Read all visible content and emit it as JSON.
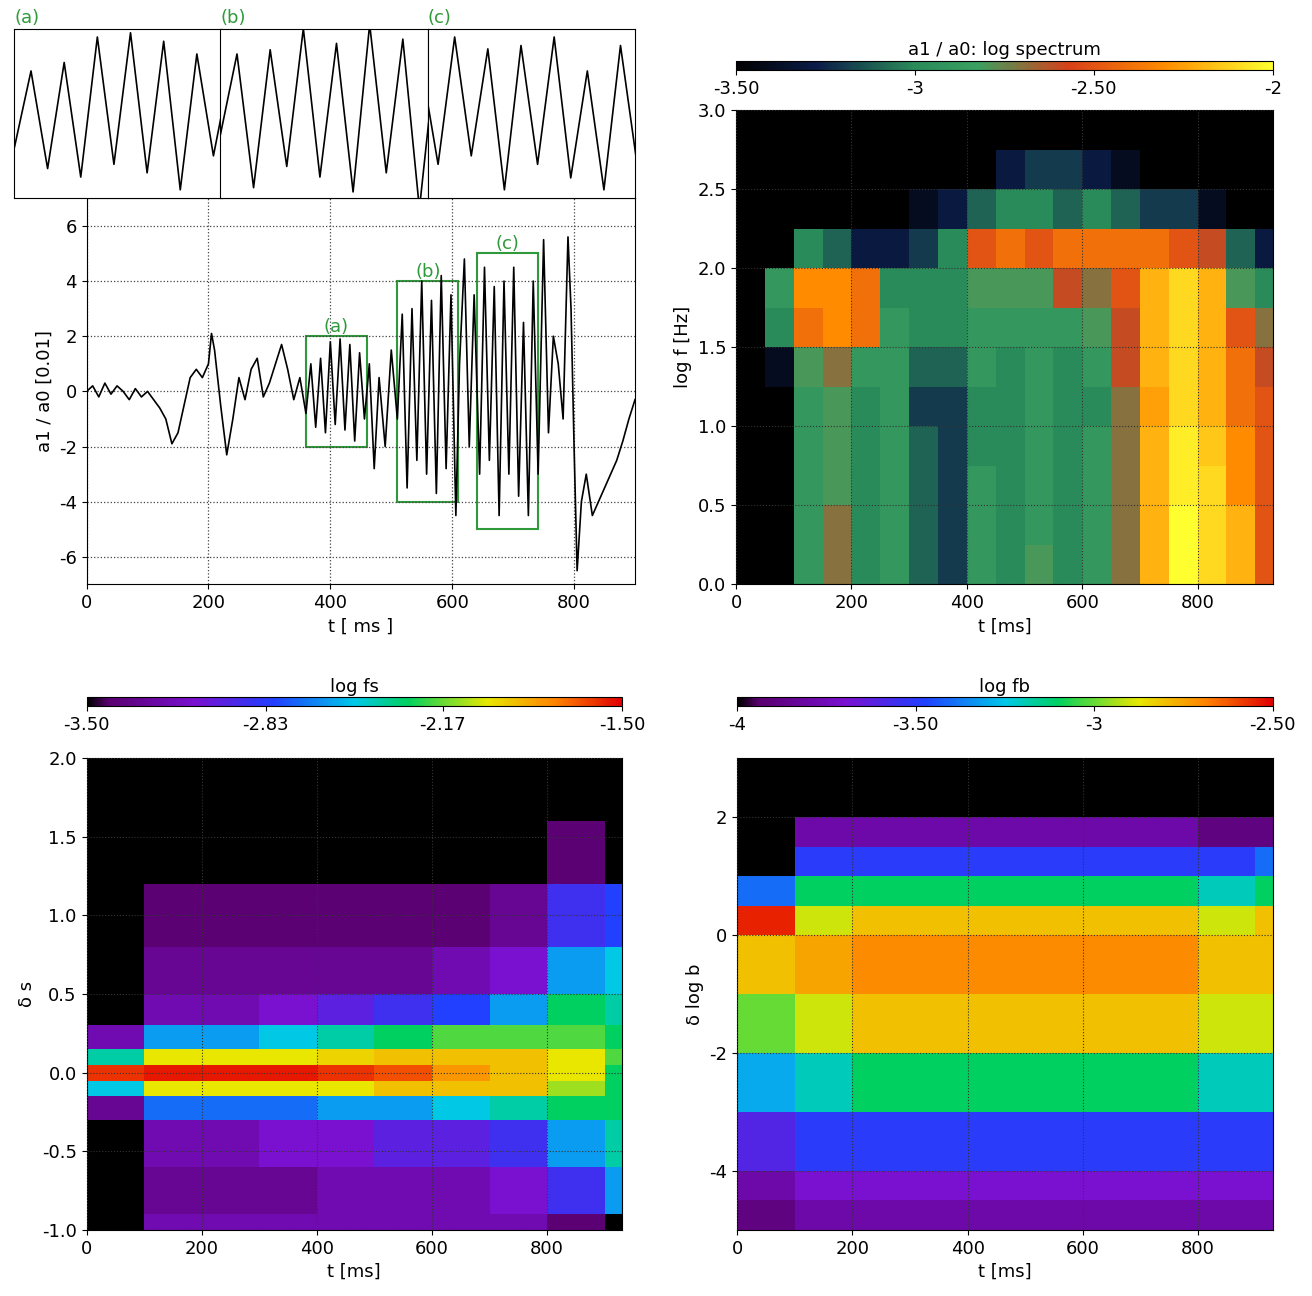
{
  "chart_data": [
    {
      "type": "line",
      "x_label": "t [ ms ]",
      "y_label": "a1 / a0 [0.01]",
      "x": [
        0,
        10,
        20,
        30,
        40,
        50,
        60,
        70,
        80,
        90,
        100,
        110,
        120,
        130,
        140,
        150,
        160,
        170,
        180,
        190,
        200,
        205,
        210,
        220,
        230,
        240,
        250,
        260,
        270,
        280,
        290,
        300,
        310,
        320,
        330,
        340,
        350,
        360,
        368,
        376,
        384,
        392,
        400,
        408,
        416,
        424,
        432,
        440,
        448,
        456,
        464,
        472,
        480,
        490,
        500,
        510,
        518,
        526,
        534,
        542,
        550,
        558,
        566,
        574,
        582,
        590,
        598,
        606,
        612,
        620,
        628,
        636,
        645,
        653,
        661,
        669,
        677,
        685,
        693,
        701,
        709,
        717,
        725,
        733,
        741,
        750,
        758,
        766,
        774,
        782,
        790,
        795,
        800,
        805,
        812,
        820,
        830,
        840,
        850,
        860,
        870,
        880,
        890,
        900
      ],
      "values": [
        0,
        0.2,
        -0.2,
        0.3,
        -0.1,
        0.2,
        0,
        -0.3,
        0.1,
        -0.2,
        0,
        -0.3,
        -0.6,
        -1.0,
        -1.9,
        -1.5,
        -0.5,
        0.5,
        0.8,
        0.5,
        1.0,
        2.1,
        1.5,
        -0.5,
        -2.3,
        -1.0,
        0.5,
        -0.3,
        0.8,
        1.2,
        -0.2,
        0.3,
        1.0,
        1.7,
        0.8,
        -0.3,
        0.5,
        -0.8,
        1.0,
        -1.3,
        1.2,
        -1.5,
        1.8,
        -1.2,
        1.9,
        -1.4,
        1.7,
        -1.8,
        1.4,
        -1.0,
        1.0,
        -2.8,
        0.5,
        -2.0,
        1.5,
        -1.0,
        2.8,
        -3.5,
        3.0,
        -2.5,
        4.0,
        -3.0,
        3.3,
        -3.7,
        4.2,
        -2.8,
        3.5,
        -4.5,
        1.0,
        4.8,
        -2.0,
        3.5,
        -3.0,
        4.5,
        -2.5,
        3.8,
        -4.5,
        4.0,
        -3.0,
        4.5,
        -3.8,
        2.5,
        -4.5,
        4.0,
        -3.0,
        5.5,
        -1.5,
        2.0,
        1.0,
        -1.0,
        5.6,
        3.0,
        -2.0,
        -6.5,
        -4.0,
        -3.0,
        -4.5,
        -4.0,
        -3.5,
        -3.0,
        -2.5,
        -1.8,
        -1.0,
        -0.3
      ],
      "color": "#000000",
      "xlim": [
        0,
        900
      ],
      "xticks": [
        0,
        200,
        400,
        600,
        800
      ],
      "ylim": [
        -7,
        7
      ],
      "yticks": [
        -6,
        -4,
        -2,
        0,
        2,
        4,
        6
      ],
      "grid": true,
      "boxes": [
        {
          "label": "(a)",
          "x": [
            360,
            460
          ],
          "y": [
            -2,
            2
          ]
        },
        {
          "label": "(b)",
          "x": [
            510,
            610
          ],
          "y": [
            -4,
            4
          ]
        },
        {
          "label": "(c)",
          "x": [
            640,
            740
          ],
          "y": [
            -5,
            5
          ]
        }
      ],
      "box_color": "#2e9a3a"
    },
    {
      "type": "heatmap",
      "clabel": "a1 / a0: log spectrum",
      "x_label": "t [ms]",
      "y_label": "log f [Hz]",
      "x_edges": [
        0,
        50,
        100,
        150,
        200,
        250,
        300,
        350,
        400,
        450,
        500,
        550,
        600,
        650,
        700,
        750,
        800,
        850,
        900,
        930
      ],
      "y_edges": [
        0,
        0.25,
        0.5,
        0.75,
        1.0,
        1.25,
        1.5,
        1.75,
        2.0,
        2.25,
        2.5,
        2.75,
        3.0
      ],
      "cells": [
        [
          -3.5,
          -3.5,
          -2.9,
          -2.7,
          -3.0,
          -2.9,
          -3.1,
          -3.2,
          -2.9,
          -3.0,
          -2.8,
          -3.0,
          -2.9,
          -2.7,
          -2.2,
          -2.0,
          -2.1,
          -2.2,
          -2.5
        ],
        [
          -3.5,
          -3.5,
          -2.9,
          -2.7,
          -3.0,
          -2.9,
          -3.1,
          -3.2,
          -2.9,
          -3.0,
          -2.9,
          -3.0,
          -2.9,
          -2.7,
          -2.2,
          -2.0,
          -2.1,
          -2.2,
          -2.5
        ],
        [
          -3.5,
          -3.5,
          -2.9,
          -2.8,
          -3.0,
          -2.9,
          -3.1,
          -3.2,
          -2.9,
          -3.0,
          -2.9,
          -3.0,
          -2.9,
          -2.7,
          -2.2,
          -2.05,
          -2.1,
          -2.3,
          -2.5
        ],
        [
          -3.5,
          -3.5,
          -2.9,
          -2.8,
          -3.0,
          -2.9,
          -3.1,
          -3.2,
          -3.0,
          -3.0,
          -2.9,
          -3.0,
          -2.9,
          -2.7,
          -2.2,
          -2.05,
          -2.15,
          -2.3,
          -2.5
        ],
        [
          -3.5,
          -3.5,
          -2.9,
          -2.8,
          -3.0,
          -2.9,
          -3.2,
          -3.2,
          -3.0,
          -3.0,
          -2.9,
          -3.0,
          -3.0,
          -2.7,
          -2.25,
          -2.1,
          -2.2,
          -2.4,
          -2.5
        ],
        [
          -3.5,
          -3.4,
          -2.8,
          -2.7,
          -2.9,
          -2.9,
          -3.1,
          -3.1,
          -2.9,
          -3.0,
          -2.9,
          -3.0,
          -2.9,
          -2.6,
          -2.2,
          -2.1,
          -2.2,
          -2.4,
          -2.6
        ],
        [
          -3.5,
          -3.0,
          -2.4,
          -2.3,
          -2.4,
          -2.9,
          -3.0,
          -3.0,
          -2.9,
          -2.9,
          -2.9,
          -2.9,
          -2.8,
          -2.6,
          -2.2,
          -2.1,
          -2.2,
          -2.5,
          -2.7
        ],
        [
          -3.5,
          -2.9,
          -2.3,
          -2.3,
          -2.4,
          -3.0,
          -3.0,
          -3.0,
          -2.8,
          -2.8,
          -2.8,
          -2.6,
          -2.7,
          -2.5,
          -2.2,
          -2.1,
          -2.2,
          -2.8,
          -3.0
        ],
        [
          -3.5,
          -3.5,
          -3.0,
          -3.1,
          -3.3,
          -3.3,
          -3.2,
          -3.0,
          -2.5,
          -2.4,
          -2.5,
          -2.4,
          -2.4,
          -2.4,
          -2.4,
          -2.5,
          -2.6,
          -3.1,
          -3.3
        ],
        [
          -3.5,
          -3.5,
          -3.5,
          -3.5,
          -3.5,
          -3.5,
          -3.4,
          -3.3,
          -3.1,
          -3.0,
          -3.0,
          -3.1,
          -3.0,
          -3.1,
          -3.2,
          -3.2,
          -3.4,
          -3.5,
          -3.5
        ],
        [
          -3.5,
          -3.5,
          -3.5,
          -3.5,
          -3.5,
          -3.5,
          -3.5,
          -3.5,
          -3.5,
          -3.3,
          -3.2,
          -3.2,
          -3.3,
          -3.4,
          -3.5,
          -3.5,
          -3.5,
          -3.5,
          -3.5
        ],
        [
          -3.5,
          -3.5,
          -3.5,
          -3.5,
          -3.5,
          -3.5,
          -3.5,
          -3.5,
          -3.5,
          -3.5,
          -3.5,
          -3.5,
          -3.5,
          -3.5,
          -3.5,
          -3.5,
          -3.5,
          -3.5,
          -3.5
        ]
      ],
      "clim": [
        -3.5,
        -2
      ],
      "cticks": [
        {
          "value": -3.5,
          "label": "-3.50"
        },
        -3,
        {
          "value": -2.5,
          "label": "-2.50"
        },
        -2
      ],
      "xlim": [
        0,
        930
      ],
      "xticks": [
        0,
        200,
        400,
        600,
        800
      ],
      "ylim": [
        0,
        3
      ],
      "yticks": [
        {
          "value": 0,
          "label": "0.0"
        },
        {
          "value": 0.5,
          "label": "0.5"
        },
        {
          "value": 1,
          "label": "1.0"
        },
        {
          "value": 1.5,
          "label": "1.5"
        },
        {
          "value": 2,
          "label": "2.0"
        },
        {
          "value": 2.5,
          "label": "2.5"
        },
        {
          "value": 3,
          "label": "3.0"
        }
      ],
      "grid": true
    },
    {
      "type": "heatmap",
      "clabel": "log fs",
      "x_label": "t [ms]",
      "y_label": "δ s",
      "x_edges": [
        0,
        100,
        200,
        300,
        400,
        500,
        600,
        700,
        800,
        900,
        930
      ],
      "y_edges": [
        -1,
        -0.9,
        -0.6,
        -0.3,
        -0.15,
        -0.05,
        0.05,
        0.15,
        0.3,
        0.5,
        0.8,
        1.2,
        1.6,
        2.0
      ],
      "cells": [
        [
          -3.5,
          -3.2,
          -3.2,
          -3.2,
          -3.2,
          -3.2,
          -3.2,
          -3.2,
          -3.4,
          -3.5
        ],
        [
          -3.5,
          -3.3,
          -3.3,
          -3.3,
          -3.2,
          -3.2,
          -3.2,
          -3.1,
          -2.9,
          -2.6
        ],
        [
          -3.5,
          -3.2,
          -3.2,
          -3.1,
          -3.1,
          -3.0,
          -3.0,
          -2.9,
          -2.6,
          -2.4
        ],
        [
          -3.3,
          -2.7,
          -2.7,
          -2.7,
          -2.6,
          -2.6,
          -2.5,
          -2.4,
          -2.3,
          -2.3
        ],
        [
          -2.5,
          -2.0,
          -2.0,
          -2.0,
          -2.0,
          -1.9,
          -1.9,
          -1.9,
          -2.1,
          -2.3
        ],
        [
          -1.6,
          -1.55,
          -1.55,
          -1.55,
          -1.6,
          -1.65,
          -1.8,
          -1.9,
          -2.0,
          -2.3
        ],
        [
          -2.4,
          -2.0,
          -2.0,
          -2.0,
          -1.95,
          -1.9,
          -1.9,
          -1.9,
          -2.0,
          -2.2
        ],
        [
          -3.2,
          -2.6,
          -2.6,
          -2.5,
          -2.4,
          -2.3,
          -2.2,
          -2.2,
          -2.2,
          -2.3
        ],
        [
          -3.5,
          -3.2,
          -3.2,
          -3.1,
          -3.0,
          -2.9,
          -2.8,
          -2.6,
          -2.3,
          -2.4
        ],
        [
          -3.5,
          -3.3,
          -3.3,
          -3.3,
          -3.3,
          -3.3,
          -3.2,
          -3.1,
          -2.6,
          -2.5
        ],
        [
          -3.5,
          -3.4,
          -3.4,
          -3.4,
          -3.4,
          -3.4,
          -3.4,
          -3.3,
          -2.9,
          -2.8
        ],
        [
          -3.5,
          -3.5,
          -3.5,
          -3.5,
          -3.5,
          -3.5,
          -3.5,
          -3.5,
          -3.4,
          -3.5
        ],
        [
          -3.5,
          -3.5,
          -3.5,
          -3.5,
          -3.5,
          -3.5,
          -3.5,
          -3.5,
          -3.5,
          -3.5
        ]
      ],
      "clim": [
        -3.5,
        -1.5
      ],
      "cticks": [
        {
          "value": -3.5,
          "label": "-3.50"
        },
        -2.83,
        -2.17,
        {
          "value": -1.5,
          "label": "-1.50"
        }
      ],
      "xlim": [
        0,
        930
      ],
      "xticks": [
        0,
        200,
        400,
        600,
        800
      ],
      "ylim": [
        -1,
        2
      ],
      "yticks": [
        {
          "value": -1,
          "label": "-1.0"
        },
        {
          "value": -0.5,
          "label": "-0.5"
        },
        {
          "value": 0,
          "label": "0.0"
        },
        {
          "value": 0.5,
          "label": "0.5"
        },
        {
          "value": 1,
          "label": "1.0"
        },
        {
          "value": 1.5,
          "label": "1.5"
        },
        {
          "value": 2,
          "label": "2.0"
        }
      ],
      "grid": true
    },
    {
      "type": "heatmap",
      "clabel": "log fb",
      "x_label": "t [ms]",
      "y_label": "δ log b",
      "x_edges": [
        0,
        100,
        200,
        300,
        400,
        500,
        600,
        700,
        800,
        900,
        930
      ],
      "y_edges": [
        -5,
        -4.5,
        -4,
        -3,
        -2,
        -1,
        0,
        0.5,
        1,
        1.5,
        2,
        3
      ],
      "cells": [
        [
          -3.9,
          -3.8,
          -3.8,
          -3.8,
          -3.8,
          -3.8,
          -3.8,
          -3.8,
          -3.8,
          -3.8
        ],
        [
          -3.8,
          -3.7,
          -3.7,
          -3.7,
          -3.7,
          -3.7,
          -3.7,
          -3.7,
          -3.7,
          -3.7
        ],
        [
          -3.6,
          -3.5,
          -3.5,
          -3.5,
          -3.5,
          -3.5,
          -3.5,
          -3.5,
          -3.5,
          -3.5
        ],
        [
          -3.3,
          -3.2,
          -3.1,
          -3.1,
          -3.1,
          -3.1,
          -3.1,
          -3.1,
          -3.2,
          -3.2
        ],
        [
          -3.0,
          -2.9,
          -2.8,
          -2.8,
          -2.8,
          -2.8,
          -2.8,
          -2.8,
          -2.9,
          -2.9
        ],
        [
          -2.8,
          -2.75,
          -2.7,
          -2.7,
          -2.7,
          -2.7,
          -2.7,
          -2.7,
          -2.8,
          -2.8
        ],
        [
          -2.55,
          -2.9,
          -2.8,
          -2.8,
          -2.8,
          -2.8,
          -2.8,
          -2.8,
          -2.9,
          -2.8
        ],
        [
          -3.4,
          -3.1,
          -3.1,
          -3.1,
          -3.1,
          -3.1,
          -3.1,
          -3.1,
          -3.2,
          -3.1
        ],
        [
          -4.0,
          -3.5,
          -3.5,
          -3.5,
          -3.5,
          -3.5,
          -3.5,
          -3.5,
          -3.5,
          -3.4
        ],
        [
          -4.0,
          -3.8,
          -3.8,
          -3.8,
          -3.8,
          -3.8,
          -3.8,
          -3.8,
          -3.9,
          -3.9
        ],
        [
          -4.0,
          -4.0,
          -4.0,
          -4.0,
          -4.0,
          -4.0,
          -4.0,
          -4.0,
          -4.0,
          -4.0
        ]
      ],
      "clim": [
        -4,
        -2.5
      ],
      "cticks": [
        -4,
        {
          "value": -3.5,
          "label": "-3.50"
        },
        -3,
        {
          "value": -2.5,
          "label": "-2.50"
        }
      ],
      "xlim": [
        0,
        930
      ],
      "xticks": [
        0,
        200,
        400,
        600,
        800
      ],
      "ylim": [
        -5,
        3
      ],
      "yticks": [
        -4,
        -2,
        0,
        2
      ],
      "grid": true
    }
  ]
}
